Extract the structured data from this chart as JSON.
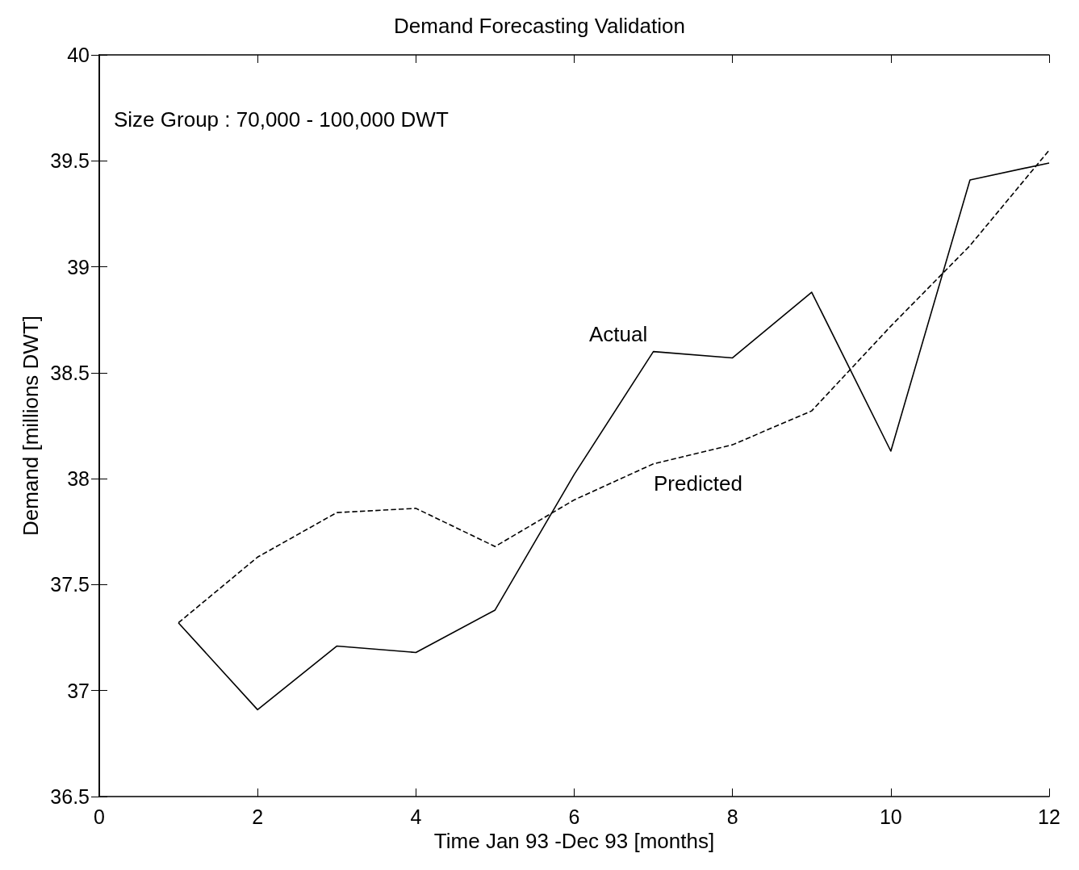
{
  "chart_data": {
    "type": "line",
    "title": "Demand Forecasting Validation",
    "xlabel": "Time Jan 93 -Dec 93 [months]",
    "ylabel": "Demand [millions DWT]",
    "x": [
      1,
      2,
      3,
      4,
      5,
      6,
      7,
      8,
      9,
      10,
      11,
      12
    ],
    "series": [
      {
        "name": "Actual",
        "color": "#000000",
        "line_style": "solid",
        "values": [
          37.32,
          36.91,
          37.21,
          37.18,
          37.38,
          38.02,
          38.6,
          38.57,
          38.88,
          38.13,
          39.41,
          39.49
        ]
      },
      {
        "name": "Predicted",
        "color": "#000000",
        "line_style": "dashed",
        "values": [
          37.32,
          37.63,
          37.84,
          37.86,
          37.68,
          37.9,
          38.07,
          38.16,
          38.32,
          38.72,
          39.1,
          39.55
        ]
      }
    ],
    "xlim": [
      0,
      12
    ],
    "xticks": [
      0,
      2,
      4,
      6,
      8,
      10,
      12
    ],
    "ylim": [
      36.5,
      40
    ],
    "yticks": [
      36.5,
      37,
      37.5,
      38,
      38.5,
      39,
      39.5,
      40
    ],
    "grid": false,
    "marker": "none",
    "annotations": [
      "Size Group : 70,000 - 100,000 DWT"
    ]
  }
}
